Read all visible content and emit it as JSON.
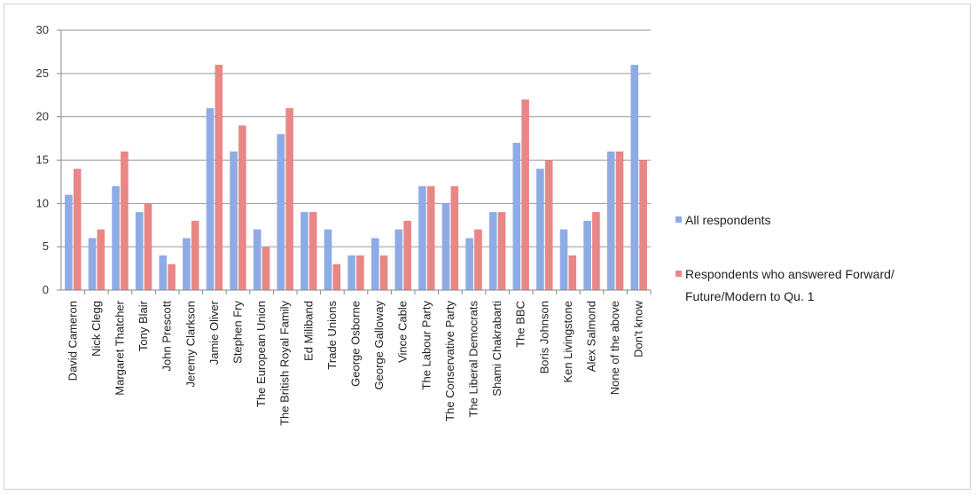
{
  "chart_data": {
    "type": "bar",
    "categories": [
      "David Cameron",
      "Nick Clegg",
      "Margaret Thatcher",
      "Tony Blair",
      "John Prescott",
      "Jeremy Clarkson",
      "Jamie Oliver",
      "Stephen Fry",
      "The European Union",
      "The British Royal Family",
      "Ed Miliband",
      "Trade Unions",
      "George Osborne",
      "George Galloway",
      "Vince Cable",
      "The Labour Party",
      "The Conservative Party",
      "The Liberal Democrats",
      "Shami Chakrabarti",
      "The BBC",
      "Boris Johnson",
      "Ken Livingstone",
      "Alex Salmond",
      "None of the above",
      "Don't know"
    ],
    "series": [
      {
        "name": "All respondents",
        "color": "#8eabe6",
        "values": [
          11,
          6,
          12,
          9,
          4,
          6,
          21,
          16,
          7,
          18,
          9,
          7,
          4,
          6,
          7,
          12,
          10,
          6,
          9,
          17,
          14,
          7,
          8,
          16,
          26
        ]
      },
      {
        "name": "Respondents who answered Forward/ Future/Modern to Qu. 1",
        "color": "#e88785",
        "values": [
          14,
          7,
          16,
          10,
          3,
          8,
          26,
          19,
          5,
          21,
          9,
          3,
          4,
          4,
          8,
          12,
          12,
          7,
          9,
          22,
          15,
          4,
          9,
          16,
          15
        ]
      }
    ],
    "legend": {
      "position": "right",
      "entries": [
        "All respondents",
        "Respondents who answered Forward/",
        "Future/Modern to Qu. 1"
      ]
    },
    "yticks": [
      "0",
      "5",
      "10",
      "15",
      "20",
      "25",
      "30"
    ],
    "ylim": [
      0,
      30
    ],
    "grid": true
  }
}
